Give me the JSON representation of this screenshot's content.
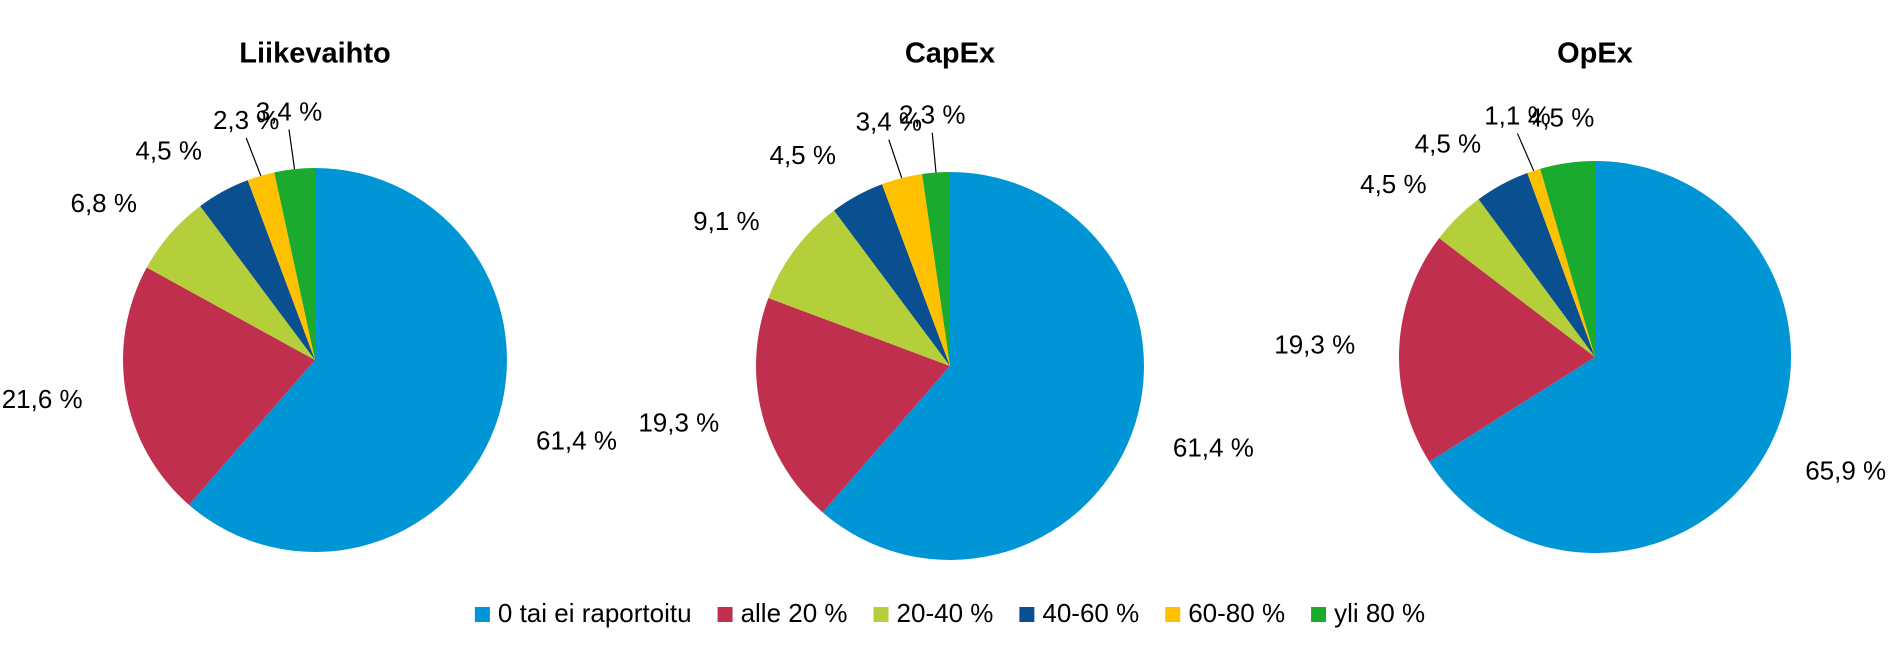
{
  "chart_data": [
    {
      "type": "pie",
      "title": "Liikevaihto",
      "values": [
        61.4,
        21.6,
        6.8,
        4.5,
        2.3,
        3.4
      ],
      "value_labels": [
        "61,4 %",
        "21,6 %",
        "6,8 %",
        "4,5 %",
        "2,3 %",
        "3,4 %"
      ]
    },
    {
      "type": "pie",
      "title": "CapEx",
      "values": [
        61.4,
        19.3,
        9.1,
        4.5,
        3.4,
        2.3
      ],
      "value_labels": [
        "61,4 %",
        "19,3 %",
        "9,1 %",
        "4,5 %",
        "3,4 %",
        "2,3 %"
      ]
    },
    {
      "type": "pie",
      "title": "OpEx",
      "values": [
        65.9,
        19.3,
        4.5,
        4.5,
        1.1,
        4.5
      ],
      "value_labels": [
        "65,9 %",
        "19,3 %",
        "4,5 %",
        "4,5 %",
        "1,1 %",
        "4,5 %"
      ]
    }
  ],
  "legend": {
    "labels": [
      "0 tai ei raportoitu",
      "alle 20 %",
      "20-40 %",
      "40-60 %",
      "60-80 %",
      "yli 80 %"
    ],
    "colors": [
      "#0096d6",
      "#c0304e",
      "#b5cf3a",
      "#0a4f8f",
      "#ffc000",
      "#1aab2e"
    ]
  }
}
